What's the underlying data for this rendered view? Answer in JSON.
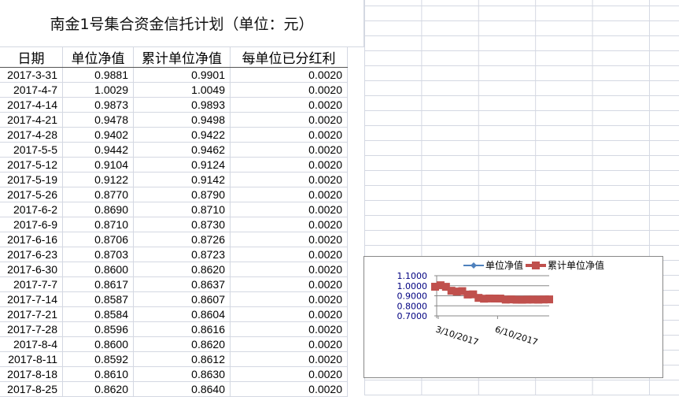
{
  "sheet": {
    "title": "南金1号集合资金信托计划（单位：元）",
    "headers": [
      "日期",
      "单位净值",
      "累计单位净值",
      "每单位已分红利"
    ],
    "rows": [
      [
        "2017-3-31",
        "0.9881",
        "0.9901",
        "0.0020"
      ],
      [
        "2017-4-7",
        "1.0029",
        "1.0049",
        "0.0020"
      ],
      [
        "2017-4-14",
        "0.9873",
        "0.9893",
        "0.0020"
      ],
      [
        "2017-4-21",
        "0.9478",
        "0.9498",
        "0.0020"
      ],
      [
        "2017-4-28",
        "0.9402",
        "0.9422",
        "0.0020"
      ],
      [
        "2017-5-5",
        "0.9442",
        "0.9462",
        "0.0020"
      ],
      [
        "2017-5-12",
        "0.9104",
        "0.9124",
        "0.0020"
      ],
      [
        "2017-5-19",
        "0.9122",
        "0.9142",
        "0.0020"
      ],
      [
        "2017-5-26",
        "0.8770",
        "0.8790",
        "0.0020"
      ],
      [
        "2017-6-2",
        "0.8690",
        "0.8710",
        "0.0020"
      ],
      [
        "2017-6-9",
        "0.8710",
        "0.8730",
        "0.0020"
      ],
      [
        "2017-6-16",
        "0.8706",
        "0.8726",
        "0.0020"
      ],
      [
        "2017-6-23",
        "0.8703",
        "0.8723",
        "0.0020"
      ],
      [
        "2017-6-30",
        "0.8600",
        "0.8620",
        "0.0020"
      ],
      [
        "2017-7-7",
        "0.8617",
        "0.8637",
        "0.0020"
      ],
      [
        "2017-7-14",
        "0.8587",
        "0.8607",
        "0.0020"
      ],
      [
        "2017-7-21",
        "0.8584",
        "0.8604",
        "0.0020"
      ],
      [
        "2017-7-28",
        "0.8596",
        "0.8616",
        "0.0020"
      ],
      [
        "2017-8-4",
        "0.8600",
        "0.8620",
        "0.0020"
      ],
      [
        "2017-8-11",
        "0.8592",
        "0.8612",
        "0.0020"
      ],
      [
        "2017-8-18",
        "0.8610",
        "0.8630",
        "0.0020"
      ],
      [
        "2017-8-25",
        "0.8620",
        "0.8640",
        "0.0020"
      ]
    ]
  },
  "chart_data": {
    "type": "line",
    "legend": "top",
    "series": [
      {
        "name": "单位净值",
        "color": "#4f81bd",
        "marker": "diamond"
      },
      {
        "name": "累计单位净值",
        "color": "#c0504d",
        "marker": "square"
      }
    ],
    "ylim": [
      0.7,
      1.1
    ],
    "yticks": [
      "1.1000",
      "1.0000",
      "0.9000",
      "0.8000",
      "0.7000"
    ],
    "xticks": [
      "3/10/2017",
      "6/10/2017"
    ],
    "grid": true
  }
}
